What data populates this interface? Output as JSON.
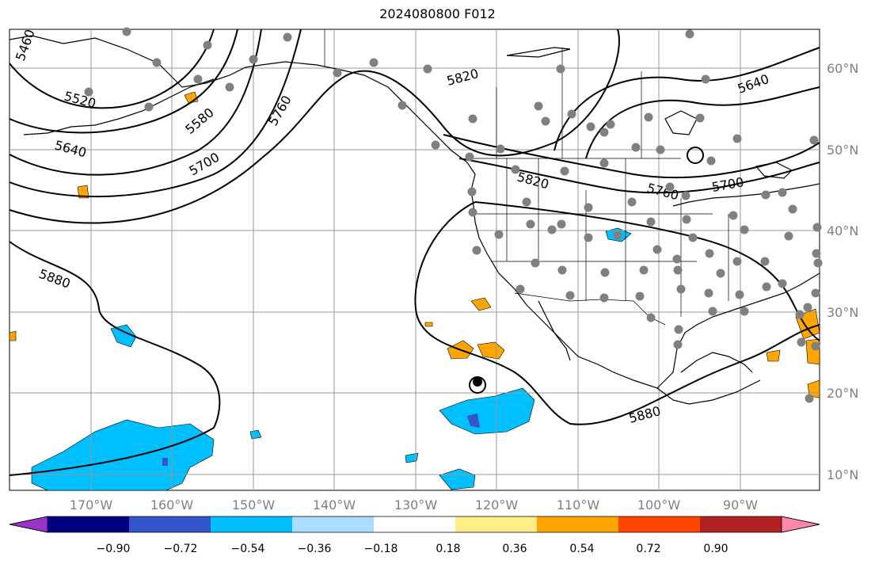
{
  "title": "2024080800 F012",
  "lat_labels": [
    "60°N",
    "50°N",
    "40°N",
    "30°N",
    "20°N",
    "10°N"
  ],
  "lon_labels": [
    "170°W",
    "160°W",
    "150°W",
    "140°W",
    "130°W",
    "120°W",
    "110°W",
    "100°W",
    "90°W"
  ],
  "contour_labels": [
    "5460",
    "5520",
    "5580",
    "5640",
    "5700",
    "5760",
    "5820",
    "5820",
    "5640",
    "5700",
    "5760",
    "5880",
    "5880"
  ],
  "colorbar": {
    "tick_labels": [
      "−0.90",
      "−0.72",
      "−0.54",
      "−0.36",
      "−0.18",
      "0.18",
      "0.36",
      "0.54",
      "0.72",
      "0.90"
    ],
    "colors": [
      "#9933cc",
      "#000080",
      "#3355cc",
      "#00bfff",
      "#aaddff",
      "#ffffff",
      "#ffee88",
      "#ffa500",
      "#ff4500",
      "#b22222",
      "#ff88aa"
    ]
  },
  "colors": {
    "station": "#808080",
    "contour": "#000000",
    "grid": "#999999",
    "neg_shade": "#00bfff",
    "pos_shade": "#ffa500"
  }
}
